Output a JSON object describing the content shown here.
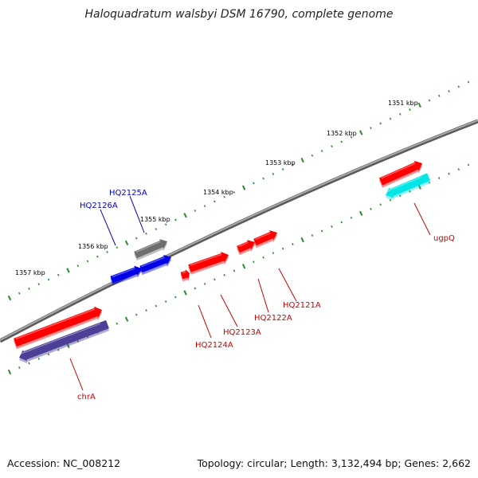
{
  "title": "Haloquadratum walsbyi DSM 16790, complete genome",
  "footer": {
    "accession": "Accession: NC_008212",
    "topology": "Topology: circular; Length: 3,132,494 bp; Genes: 2,662"
  },
  "colors": {
    "backbone": "#8a8a8a",
    "ticks": "#2a8a2a",
    "red": "#ff0000",
    "blue": "#0000e6",
    "gray": "#6e6e6e",
    "cyan": "#00e5e5",
    "navy": "#4b4096",
    "label_red": "#cc0000",
    "label_blue": "#0000cc"
  },
  "kbp_labels": [
    "1351 kbp",
    "1352 kbp",
    "1353 kbp",
    "1354 kbp",
    "1355 kbp",
    "1356 kbp",
    "1357 kbp"
  ],
  "genes": [
    {
      "name": "ugpQ",
      "color": "cyan",
      "strand": "minus"
    },
    {
      "name": "",
      "color": "red",
      "strand": "plus"
    },
    {
      "name": "HQ2121A",
      "color": "red",
      "strand": "plus"
    },
    {
      "name": "HQ2122A",
      "color": "red",
      "strand": "plus"
    },
    {
      "name": "HQ2123A",
      "color": "red",
      "strand": "plus"
    },
    {
      "name": "HQ2124A",
      "color": "red",
      "strand": "plus"
    },
    {
      "name": "HQ2125A",
      "color": "gray",
      "strand": "plus"
    },
    {
      "name": "HQ2126A",
      "color": "blue",
      "strand": "plus"
    },
    {
      "name": "",
      "color": "blue",
      "strand": "plus"
    },
    {
      "name": "chrA",
      "color": "navy",
      "strand": "minus"
    },
    {
      "name": "",
      "color": "red",
      "strand": "plus"
    }
  ]
}
